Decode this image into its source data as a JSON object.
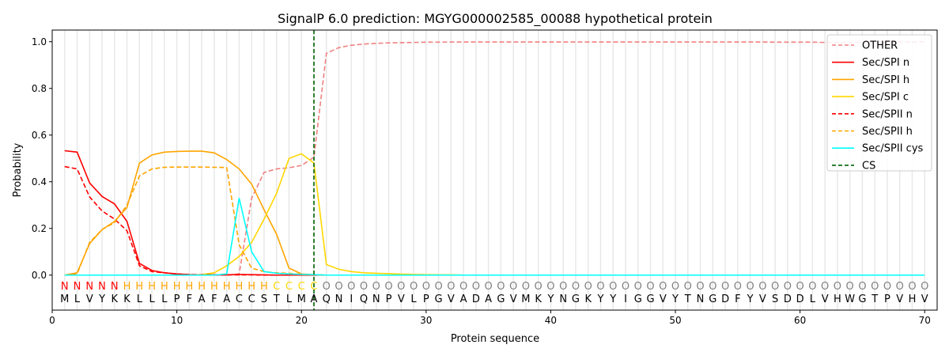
{
  "chart_data": {
    "type": "line",
    "title": "SignalP 6.0 prediction: MGYG000002585_00088 hypothetical protein",
    "xlabel": "Protein sequence",
    "ylabel": "Probability",
    "xlim": [
      0,
      71
    ],
    "ylim": [
      -0.15,
      1.05
    ],
    "xticks": [
      "0",
      "10",
      "20",
      "30",
      "40",
      "50",
      "60",
      "70"
    ],
    "yticks": [
      "0.0",
      "0.2",
      "0.4",
      "0.6",
      "0.8",
      "1.0"
    ],
    "grid": "vertical per residue",
    "legend_position": "top-right",
    "sequence": "MLVYKKLLLPFAFACCSTLMAQNIQNPVLPGVADAGVMKYNGKYYIGGVYTNGDFYVSDDLVHWGTPVHV",
    "labels": "NNNNNHHHHHHHHHHHHCCCCOOOOOOOOOOOOOOOOOOOOOOOOOOOOOOOOOOOOOOOOOOOOOOOOO",
    "label_colors": {
      "N": "#ff0000",
      "H": "#ffa500",
      "C": "#ffd700",
      "O": "#808080"
    },
    "cleavage_site": 21,
    "series": [
      {
        "name": "OTHER",
        "color": "#f08080",
        "dash": true,
        "values": [
          0,
          0,
          0,
          0,
          0,
          0,
          0,
          0,
          0,
          0,
          0,
          0,
          0,
          0,
          0.005,
          0.33,
          0.44,
          0.455,
          0.46,
          0.47,
          0.505,
          0.95,
          0.975,
          0.985,
          0.99,
          0.993,
          0.995,
          0.996,
          0.997,
          0.998,
          0.998,
          0.999,
          0.999,
          0.999,
          0.999,
          0.999,
          0.999,
          0.999,
          0.999,
          0.999,
          0.999,
          0.999,
          0.999,
          0.999,
          0.999,
          0.999,
          0.999,
          0.999,
          0.999,
          0.999,
          0.999,
          0.999,
          0.999,
          0.999,
          0.999,
          0.999,
          0.999,
          0.998,
          0.998,
          0.998,
          0.998,
          0.997,
          0.997,
          0.997,
          0.997,
          0.998,
          0.998,
          0.999,
          0.999,
          1.0
        ]
      },
      {
        "name": "Sec/SPI n",
        "color": "#ff0000",
        "dash": false,
        "values": [
          0.533,
          0.527,
          0.395,
          0.337,
          0.305,
          0.23,
          0.05,
          0.02,
          0.01,
          0.005,
          0.002,
          0.001,
          0.001,
          0.001,
          0.003,
          0.002,
          0.001,
          0,
          0,
          0,
          0,
          0,
          0,
          0,
          0,
          0,
          0,
          0,
          0,
          0,
          0,
          0,
          0,
          0,
          0,
          0,
          0,
          0,
          0,
          0,
          0,
          0,
          0,
          0,
          0,
          0,
          0,
          0,
          0,
          0,
          0,
          0,
          0,
          0,
          0,
          0,
          0,
          0,
          0,
          0,
          0,
          0,
          0,
          0,
          0,
          0,
          0,
          0,
          0,
          0
        ]
      },
      {
        "name": "Sec/SPI h",
        "color": "#ffa500",
        "dash": false,
        "values": [
          0,
          0.01,
          0.135,
          0.195,
          0.23,
          0.29,
          0.48,
          0.515,
          0.527,
          0.53,
          0.531,
          0.531,
          0.524,
          0.495,
          0.455,
          0.39,
          0.28,
          0.175,
          0.03,
          0.005,
          0.002,
          0,
          0,
          0,
          0,
          0,
          0,
          0,
          0,
          0,
          0,
          0,
          0,
          0,
          0,
          0,
          0,
          0,
          0,
          0,
          0,
          0,
          0,
          0,
          0,
          0,
          0,
          0,
          0,
          0,
          0,
          0,
          0,
          0,
          0,
          0,
          0,
          0,
          0,
          0,
          0,
          0,
          0,
          0,
          0,
          0,
          0,
          0,
          0,
          0
        ]
      },
      {
        "name": "Sec/SPI c",
        "color": "#ffd700",
        "dash": false,
        "values": [
          0,
          0,
          0,
          0,
          0,
          0,
          0,
          0,
          0,
          0,
          0,
          0.002,
          0.01,
          0.04,
          0.08,
          0.14,
          0.24,
          0.35,
          0.5,
          0.52,
          0.48,
          0.045,
          0.025,
          0.015,
          0.01,
          0.008,
          0.006,
          0.004,
          0.003,
          0.002,
          0.001,
          0.001,
          0,
          0,
          0,
          0,
          0,
          0,
          0,
          0,
          0,
          0,
          0,
          0,
          0,
          0,
          0,
          0,
          0,
          0,
          0,
          0,
          0,
          0,
          0,
          0,
          0,
          0,
          0,
          0,
          0,
          0,
          0,
          0,
          0,
          0,
          0,
          0,
          0,
          0
        ]
      },
      {
        "name": "Sec/SPII n",
        "color": "#ff0000",
        "dash": true,
        "values": [
          0.465,
          0.455,
          0.335,
          0.275,
          0.24,
          0.19,
          0.04,
          0.015,
          0.01,
          0.005,
          0.002,
          0.001,
          0.001,
          0.001,
          0.001,
          0.001,
          0,
          0,
          0,
          0,
          0,
          0,
          0,
          0,
          0,
          0,
          0,
          0,
          0,
          0,
          0,
          0,
          0,
          0,
          0,
          0,
          0,
          0,
          0,
          0,
          0,
          0,
          0,
          0,
          0,
          0,
          0,
          0,
          0,
          0,
          0,
          0,
          0,
          0,
          0,
          0,
          0,
          0,
          0,
          0,
          0,
          0,
          0,
          0,
          0,
          0,
          0,
          0,
          0,
          0
        ]
      },
      {
        "name": "Sec/SPII h",
        "color": "#ffa500",
        "dash": true,
        "values": [
          0,
          0.005,
          0.14,
          0.195,
          0.225,
          0.3,
          0.425,
          0.455,
          0.462,
          0.463,
          0.463,
          0.463,
          0.462,
          0.461,
          0.13,
          0.03,
          0.015,
          0.01,
          0.008,
          0.003,
          0.002,
          0,
          0,
          0,
          0,
          0,
          0,
          0,
          0,
          0,
          0,
          0,
          0,
          0,
          0,
          0,
          0,
          0,
          0,
          0,
          0,
          0,
          0,
          0,
          0,
          0,
          0,
          0,
          0,
          0,
          0,
          0,
          0,
          0,
          0,
          0,
          0,
          0,
          0,
          0,
          0,
          0,
          0,
          0,
          0,
          0,
          0,
          0,
          0,
          0
        ]
      },
      {
        "name": "Sec/SPII cys",
        "color": "#00ffff",
        "dash": false,
        "values": [
          0,
          0,
          0,
          0,
          0,
          0,
          0,
          0,
          0,
          0,
          0,
          0,
          0,
          0.005,
          0.33,
          0.1,
          0.015,
          0.008,
          0.005,
          0.003,
          0.002,
          0,
          0,
          0,
          0,
          0,
          0,
          0,
          0,
          0,
          0,
          0,
          0,
          0,
          0,
          0,
          0,
          0,
          0,
          0,
          0,
          0,
          0,
          0,
          0,
          0,
          0,
          0,
          0,
          0,
          0,
          0,
          0,
          0,
          0,
          0,
          0,
          0,
          0,
          0,
          0,
          0,
          0,
          0,
          0,
          0,
          0,
          0,
          0,
          0
        ]
      }
    ],
    "cs_legend": {
      "name": "CS",
      "color": "#006400"
    }
  }
}
